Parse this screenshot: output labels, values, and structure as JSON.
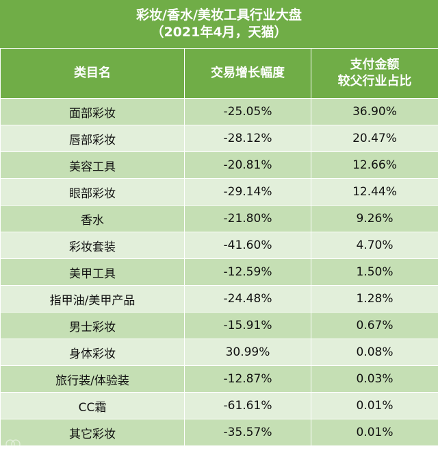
{
  "title": {
    "line1": "彩妆/香水/美妆工具行业大盘",
    "line2": "（2021年4月，天猫）"
  },
  "headers": {
    "category": "类目名",
    "growth": "交易增长幅度",
    "share_line1": "支付金额",
    "share_line2": "较父行业占比"
  },
  "rows": [
    {
      "category": "面部彩妆",
      "growth": "-25.05%",
      "share": "36.90%"
    },
    {
      "category": "唇部彩妆",
      "growth": "-28.12%",
      "share": "20.47%"
    },
    {
      "category": "美容工具",
      "growth": "-20.81%",
      "share": "12.66%"
    },
    {
      "category": "眼部彩妆",
      "growth": "-29.14%",
      "share": "12.44%"
    },
    {
      "category": "香水",
      "growth": "-21.80%",
      "share": "9.26%"
    },
    {
      "category": "彩妆套装",
      "growth": "-41.60%",
      "share": "4.70%"
    },
    {
      "category": "美甲工具",
      "growth": "-12.59%",
      "share": "1.50%"
    },
    {
      "category": "指甲油/美甲产品",
      "growth": "-24.48%",
      "share": "1.28%"
    },
    {
      "category": "男士彩妆",
      "growth": "-15.91%",
      "share": "0.67%"
    },
    {
      "category": "身体彩妆",
      "growth": "30.99%",
      "share": "0.08%"
    },
    {
      "category": "旅行装/体验装",
      "growth": "-12.87%",
      "share": "0.03%"
    },
    {
      "category": "CC霜",
      "growth": "-61.61%",
      "share": "0.01%"
    },
    {
      "category": "其它彩妆",
      "growth": "-35.57%",
      "share": "0.01%"
    }
  ],
  "watermark": "人数据报",
  "colors": {
    "header_green": "#70ad47",
    "row_dark": "#c5dfb4",
    "row_light": "#e2efda"
  }
}
